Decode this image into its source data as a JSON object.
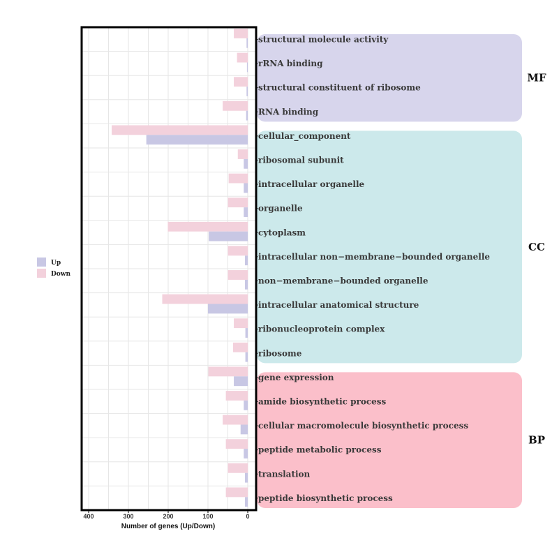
{
  "chart_data": {
    "type": "bar",
    "orientation": "horizontal-mirrored",
    "xlabel": "Number of genes (Up/Down)",
    "xlim": [
      0,
      420
    ],
    "x_ticks": [
      400,
      300,
      200,
      100,
      0
    ],
    "legend": {
      "placement": "left",
      "entries": [
        {
          "name": "Up",
          "color": "#c8c7e4"
        },
        {
          "name": "Down",
          "color": "#f3d1dc"
        }
      ]
    },
    "groups": [
      {
        "name": "MF",
        "color": "#d7d5ec",
        "start": 0,
        "end": 3
      },
      {
        "name": "CC",
        "color": "#cce9eb",
        "start": 4,
        "end": 13
      },
      {
        "name": "BP",
        "color": "#fbbfca",
        "start": 14,
        "end": 19
      }
    ],
    "categories": [
      "structural molecule activity",
      "rRNA binding",
      "structural constituent of ribosome",
      "RNA binding",
      "cellular_component",
      "ribosomal subunit",
      "intracellular organelle",
      "organelle",
      "cytoplasm",
      "intracellular non−membrane−bounded organelle",
      "non−membrane−bounded organelle",
      "intracellular anatomical structure",
      "ribonucleoprotein complex",
      "ribosome",
      "gene expression",
      "amide biosynthetic process",
      "cellular macromolecule biosynthetic process",
      "peptide metabolic process",
      "translation",
      "peptide biosynthetic process"
    ],
    "series": [
      {
        "name": "Down",
        "values": [
          35,
          27,
          35,
          63,
          342,
          25,
          48,
          50,
          201,
          50,
          50,
          215,
          35,
          37,
          99,
          55,
          63,
          55,
          50,
          55
        ]
      },
      {
        "name": "Up",
        "values": [
          3,
          2,
          3,
          4,
          255,
          10,
          10,
          10,
          98,
          7,
          7,
          100,
          6,
          6,
          35,
          10,
          18,
          10,
          7,
          7
        ]
      }
    ]
  }
}
